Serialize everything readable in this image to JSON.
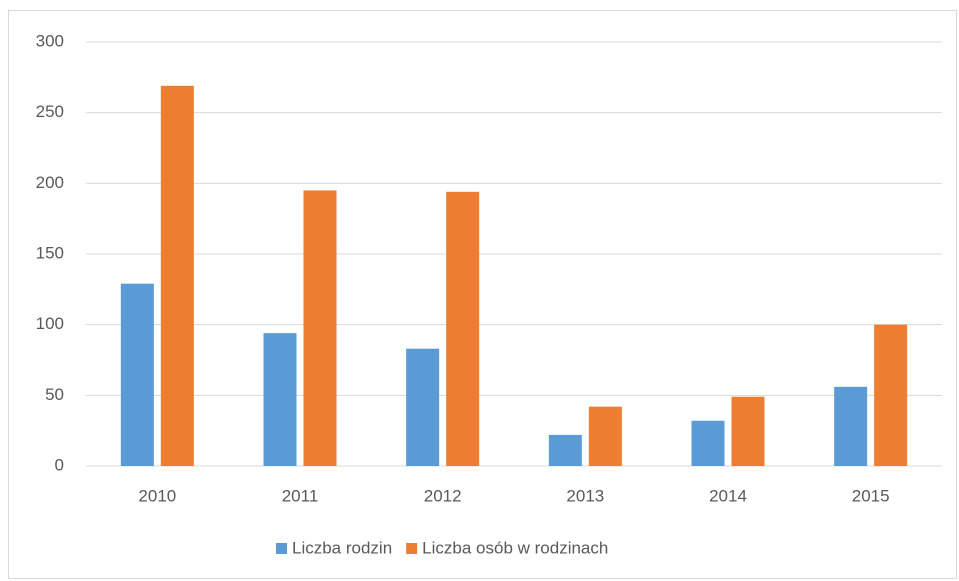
{
  "chart_data": {
    "type": "bar",
    "categories": [
      "2010",
      "2011",
      "2012",
      "2013",
      "2014",
      "2015"
    ],
    "series": [
      {
        "name": "Liczba rodzin",
        "color": "#5b9bd5",
        "values": [
          129,
          94,
          83,
          22,
          32,
          56
        ]
      },
      {
        "name": "Liczba osób w rodzinach",
        "color": "#ed7d31",
        "values": [
          269,
          195,
          194,
          42,
          49,
          100
        ]
      }
    ],
    "ylim": [
      0,
      300
    ],
    "yticks": [
      0,
      50,
      100,
      150,
      200,
      250,
      300
    ],
    "grid": true,
    "legend": "bottom"
  }
}
